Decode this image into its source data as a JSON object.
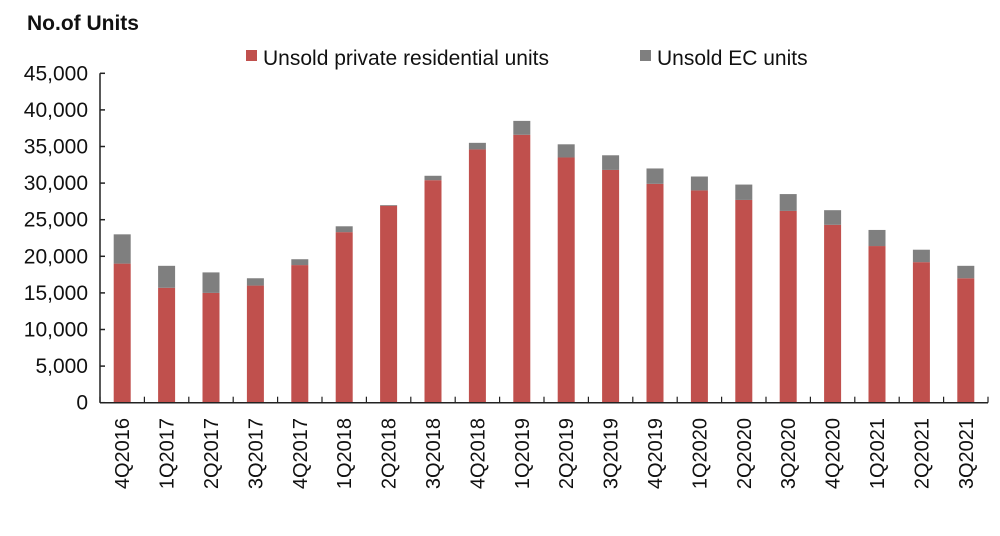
{
  "chart_data": {
    "type": "bar",
    "stacked": true,
    "ylabel": "No.of Units",
    "ylim": [
      0,
      45000
    ],
    "yticks": [
      "0",
      "5,000",
      "10,000",
      "15,000",
      "20,000",
      "25,000",
      "30,000",
      "35,000",
      "40,000",
      "45,000"
    ],
    "grid": false,
    "legend_placement": "top",
    "categories": [
      "4Q2016",
      "1Q2017",
      "2Q2017",
      "3Q2017",
      "4Q2017",
      "1Q2018",
      "2Q2018",
      "3Q2018",
      "4Q2018",
      "1Q2019",
      "2Q2019",
      "3Q2019",
      "4Q2019",
      "1Q2020",
      "2Q2020",
      "3Q2020",
      "4Q2020",
      "1Q2021",
      "2Q2021",
      "3Q2021"
    ],
    "series": [
      {
        "name": "Unsold private residential units",
        "color": "#c0504d",
        "values": [
          19000,
          15700,
          15000,
          16000,
          18800,
          23300,
          26900,
          30400,
          34600,
          36600,
          33500,
          31800,
          29900,
          29000,
          27700,
          26200,
          24300,
          21400,
          19200,
          17000
        ]
      },
      {
        "name": "Unsold EC units",
        "color": "#7f7f7f",
        "values": [
          4000,
          3000,
          2800,
          1000,
          800,
          800,
          100,
          600,
          900,
          1900,
          1800,
          2000,
          2100,
          1900,
          2100,
          2300,
          2000,
          2200,
          1700,
          1700
        ]
      }
    ]
  }
}
